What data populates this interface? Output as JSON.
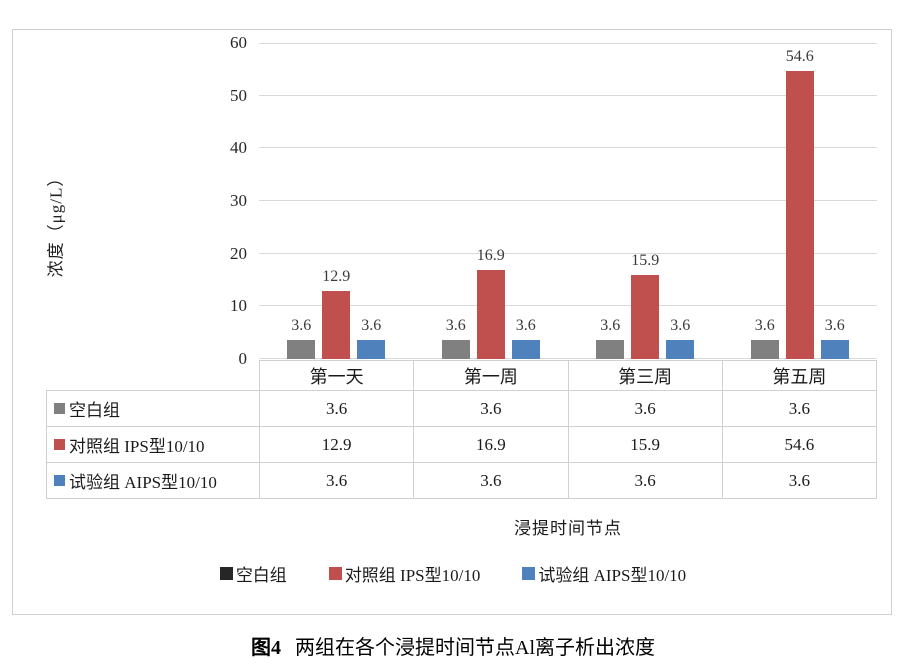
{
  "chart_data": {
    "type": "bar",
    "categories": [
      "第一天",
      "第一周",
      "第三周",
      "第五周"
    ],
    "series": [
      {
        "name": "空白组",
        "values": [
          3.6,
          3.6,
          3.6,
          3.6
        ],
        "color": "#808080",
        "legend_color": "#262626"
      },
      {
        "name": "对照组 IPS型10/10",
        "values": [
          12.9,
          16.9,
          15.9,
          54.6
        ],
        "color": "#c0504d",
        "legend_color": "#c0504d"
      },
      {
        "name": "试验组 AIPS型10/10",
        "values": [
          3.6,
          3.6,
          3.6,
          3.6
        ],
        "color": "#4f81bd",
        "legend_color": "#4f81bd"
      }
    ],
    "ylabel": "浓度（μg/L）",
    "xlabel": "浸提时间节点",
    "ylim": [
      0,
      60
    ],
    "yticks": [
      0,
      10,
      20,
      30,
      40,
      50,
      60
    ],
    "grid": true,
    "legend_position": "bottom",
    "data_table": true,
    "colors": {
      "gridline": "#d9d9d9",
      "table_border": "#d0d0d0",
      "label_text": "#3a3a3a"
    }
  },
  "caption": {
    "label": "图4",
    "text": "两组在各个浸提时间节点Al离子析出浓度"
  }
}
